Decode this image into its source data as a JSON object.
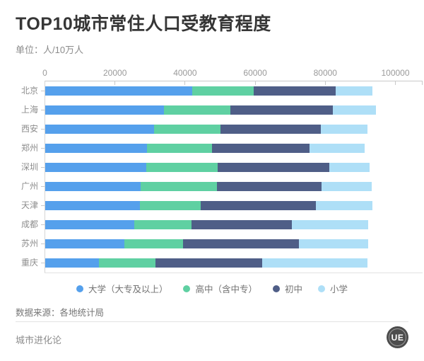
{
  "header": {
    "title": "TOP10城市常住人口受教育程度",
    "unit": "单位：人/10万人"
  },
  "footer": {
    "source": "数据来源：各地统计局",
    "brand": "城市进化论",
    "logo_text": "UE"
  },
  "chart_data": {
    "type": "bar",
    "orientation": "horizontal",
    "stacked": true,
    "title": "TOP10城市常住人口受教育程度",
    "unit": "人/10万人",
    "categories": [
      "北京",
      "上海",
      "西安",
      "郑州",
      "深圳",
      "广州",
      "天津",
      "成都",
      "苏州",
      "重庆"
    ],
    "series": [
      {
        "name": "大学（大专及以上）",
        "color": "#55a0ec",
        "values": [
          41980,
          33872,
          31050,
          29080,
          28849,
          27277,
          26940,
          25430,
          22610,
          15412
        ]
      },
      {
        "name": "高中（含中专）",
        "color": "#5fd0a2",
        "values": [
          17593,
          19045,
          19040,
          18540,
          20400,
          21750,
          17510,
          16340,
          16770,
          15992
        ]
      },
      {
        "name": "初中",
        "color": "#4f5e87",
        "values": [
          23289,
          29240,
          28540,
          27710,
          31720,
          29830,
          32760,
          28550,
          32930,
          30404
        ]
      },
      {
        "name": "小学",
        "color": "#aedff7",
        "values": [
          10503,
          12190,
          13400,
          15860,
          11550,
          14220,
          16220,
          21910,
          19730,
          30220
        ]
      }
    ],
    "x_ticks": [
      "0",
      "20000",
      "40000",
      "60000",
      "80000",
      "100000"
    ],
    "xlim": [
      0,
      100000
    ],
    "grid": false,
    "legend_position": "bottom"
  },
  "colors": {
    "axis_line": "#c9c9c9",
    "title_text": "#363636",
    "muted_text": "#8b8b8b"
  }
}
